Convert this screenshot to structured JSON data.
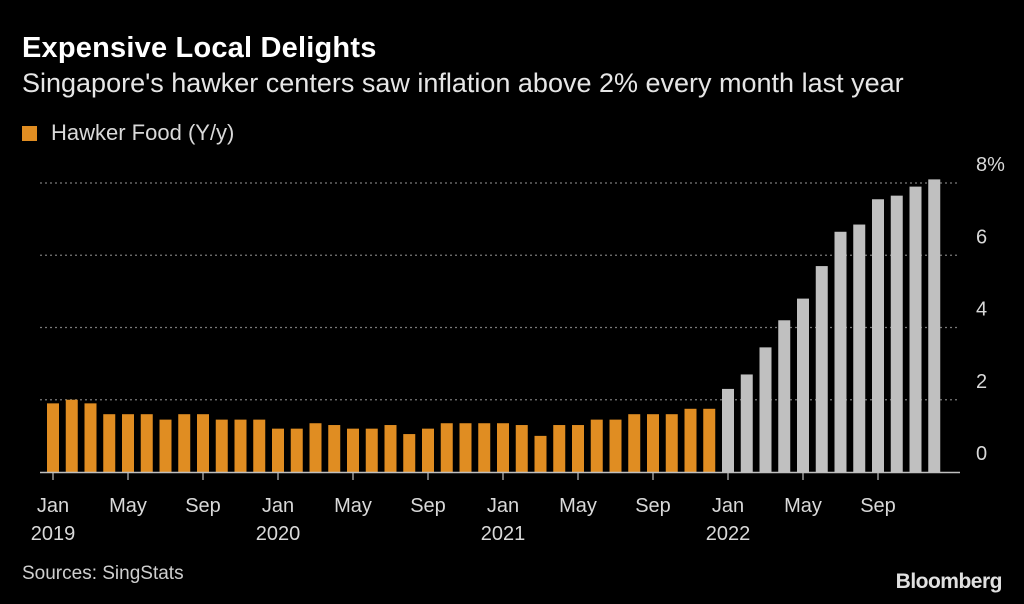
{
  "title": "Expensive Local Delights",
  "subtitle": "Singapore's hawker centers saw inflation above 2% every month last year",
  "legend": {
    "label": "Hawker Food (Y/y)"
  },
  "source": "Sources: SingStats",
  "brand": "Bloomberg",
  "colors": {
    "historical": "#e08d22",
    "recent": "#c0c0c0",
    "grid": "#7a7a7a",
    "axis": "#bfbfbf"
  },
  "chart_data": {
    "type": "bar",
    "title": "Expensive Local Delights",
    "ylabel": "Hawker Food (Y/y)",
    "ylim": [
      0,
      8
    ],
    "yticks": [
      {
        "value": 0,
        "label": "0"
      },
      {
        "value": 2,
        "label": "2"
      },
      {
        "value": 4,
        "label": "4"
      },
      {
        "value": 6,
        "label": "6"
      },
      {
        "value": 8,
        "label": "8%"
      }
    ],
    "xticks": [
      {
        "index": 0,
        "month": "Jan",
        "year": "2019"
      },
      {
        "index": 4,
        "month": "May",
        "year": ""
      },
      {
        "index": 8,
        "month": "Sep",
        "year": ""
      },
      {
        "index": 12,
        "month": "Jan",
        "year": "2020"
      },
      {
        "index": 16,
        "month": "May",
        "year": ""
      },
      {
        "index": 20,
        "month": "Sep",
        "year": ""
      },
      {
        "index": 24,
        "month": "Jan",
        "year": "2021"
      },
      {
        "index": 28,
        "month": "May",
        "year": ""
      },
      {
        "index": 32,
        "month": "Sep",
        "year": ""
      },
      {
        "index": 36,
        "month": "Jan",
        "year": "2022"
      },
      {
        "index": 40,
        "month": "May",
        "year": ""
      },
      {
        "index": 44,
        "month": "Sep",
        "year": ""
      }
    ],
    "highlight_from_index": 36,
    "values": [
      1.9,
      2.0,
      1.9,
      1.6,
      1.6,
      1.6,
      1.45,
      1.6,
      1.6,
      1.45,
      1.45,
      1.45,
      1.2,
      1.2,
      1.35,
      1.3,
      1.2,
      1.2,
      1.3,
      1.05,
      1.2,
      1.35,
      1.35,
      1.35,
      1.35,
      1.3,
      1.0,
      1.3,
      1.3,
      1.45,
      1.45,
      1.6,
      1.6,
      1.6,
      1.75,
      1.75,
      2.3,
      2.7,
      3.45,
      4.2,
      4.8,
      5.7,
      6.65,
      6.85,
      7.55,
      7.65,
      7.9,
      8.1
    ]
  }
}
